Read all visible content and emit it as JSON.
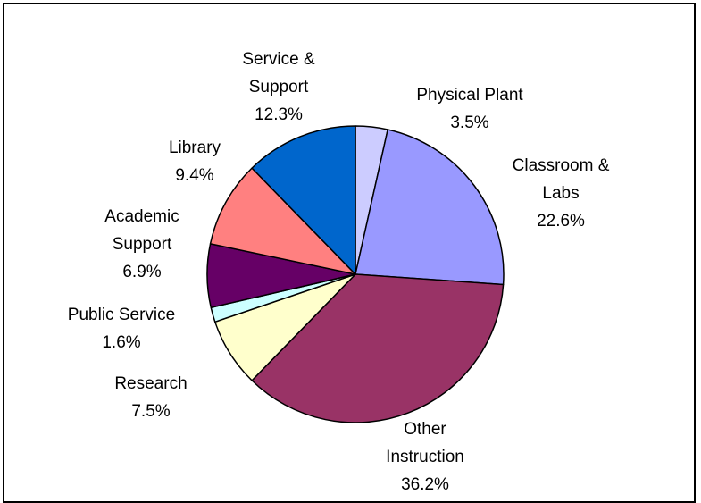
{
  "chart_data": {
    "type": "pie",
    "title": "",
    "slices": [
      {
        "label": "Physical Plant",
        "label_lines": [
          "Physical Plant"
        ],
        "value": 3.5,
        "value_text": "3.5%",
        "color": "#ccccff"
      },
      {
        "label": "Classroom & Labs",
        "label_lines": [
          "Classroom &",
          "Labs"
        ],
        "value": 22.6,
        "value_text": "22.6%",
        "color": "#9999ff"
      },
      {
        "label": "Other Instruction",
        "label_lines": [
          "Other",
          "Instruction"
        ],
        "value": 36.2,
        "value_text": "36.2%",
        "color": "#993366"
      },
      {
        "label": "Research",
        "label_lines": [
          "Research"
        ],
        "value": 7.5,
        "value_text": "7.5%",
        "color": "#ffffcc"
      },
      {
        "label": "Public Service",
        "label_lines": [
          "Public Service"
        ],
        "value": 1.6,
        "value_text": "1.6%",
        "color": "#ccffff"
      },
      {
        "label": "Academic Support",
        "label_lines": [
          "Academic",
          "Support"
        ],
        "value": 6.9,
        "value_text": "6.9%",
        "color": "#660066"
      },
      {
        "label": "Library",
        "label_lines": [
          "Library"
        ],
        "value": 9.4,
        "value_text": "9.4%",
        "color": "#ff8080"
      },
      {
        "label": "Service & Support",
        "label_lines": [
          "Service &",
          "Support"
        ],
        "value": 12.3,
        "value_text": "12.3%",
        "color": "#0066cc"
      }
    ],
    "start": "12 o'clock",
    "direction": "clockwise",
    "legend": "none"
  }
}
